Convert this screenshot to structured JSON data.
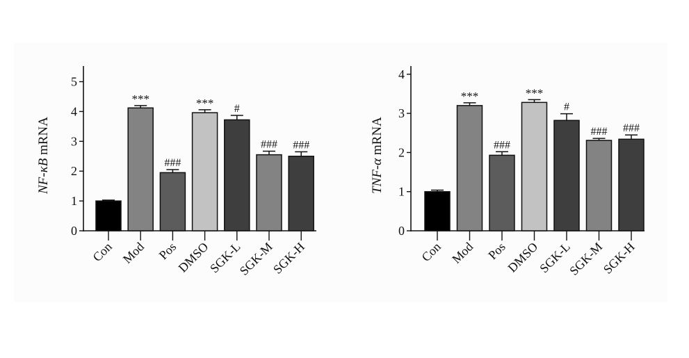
{
  "chart_data": [
    {
      "type": "bar",
      "title": "",
      "xlabel": "",
      "ylabel_italic": "NF-κB",
      "ylabel_rest": " mRNA",
      "ylim": [
        0,
        5.5
      ],
      "yticks": [
        0,
        1,
        2,
        3,
        4,
        5
      ],
      "categories": [
        "Con",
        "Mod",
        "Pos",
        "DMSO",
        "SGK-L",
        "SGK-M",
        "SGK-H"
      ],
      "values": [
        1.0,
        4.12,
        1.95,
        3.96,
        3.72,
        2.55,
        2.5
      ],
      "errors": [
        0.03,
        0.08,
        0.1,
        0.1,
        0.15,
        0.12,
        0.15
      ],
      "annotations": [
        "",
        "***",
        "###",
        "***",
        "#",
        "###",
        "###"
      ],
      "colors": [
        "#000000",
        "#838383",
        "#5c5c5c",
        "#c2c2c2",
        "#3e3e3e",
        "#838383",
        "#3e3e3e"
      ]
    },
    {
      "type": "bar",
      "title": "",
      "xlabel": "",
      "ylabel_italic": "TNF-α",
      "ylabel_rest": " mRNA",
      "ylim": [
        0,
        4.2
      ],
      "yticks": [
        0,
        1,
        2,
        3,
        4
      ],
      "categories": [
        "Con",
        "Mod",
        "Pos",
        "DMSO",
        "SGK-L",
        "SGK-M",
        "SGK-H"
      ],
      "values": [
        1.0,
        3.2,
        1.93,
        3.28,
        2.82,
        2.31,
        2.34
      ],
      "errors": [
        0.04,
        0.07,
        0.09,
        0.07,
        0.17,
        0.05,
        0.11
      ],
      "annotations": [
        "",
        "***",
        "###",
        "***",
        "#",
        "###",
        "###"
      ],
      "colors": [
        "#000000",
        "#838383",
        "#5c5c5c",
        "#c2c2c2",
        "#3e3e3e",
        "#838383",
        "#3e3e3e"
      ]
    }
  ]
}
